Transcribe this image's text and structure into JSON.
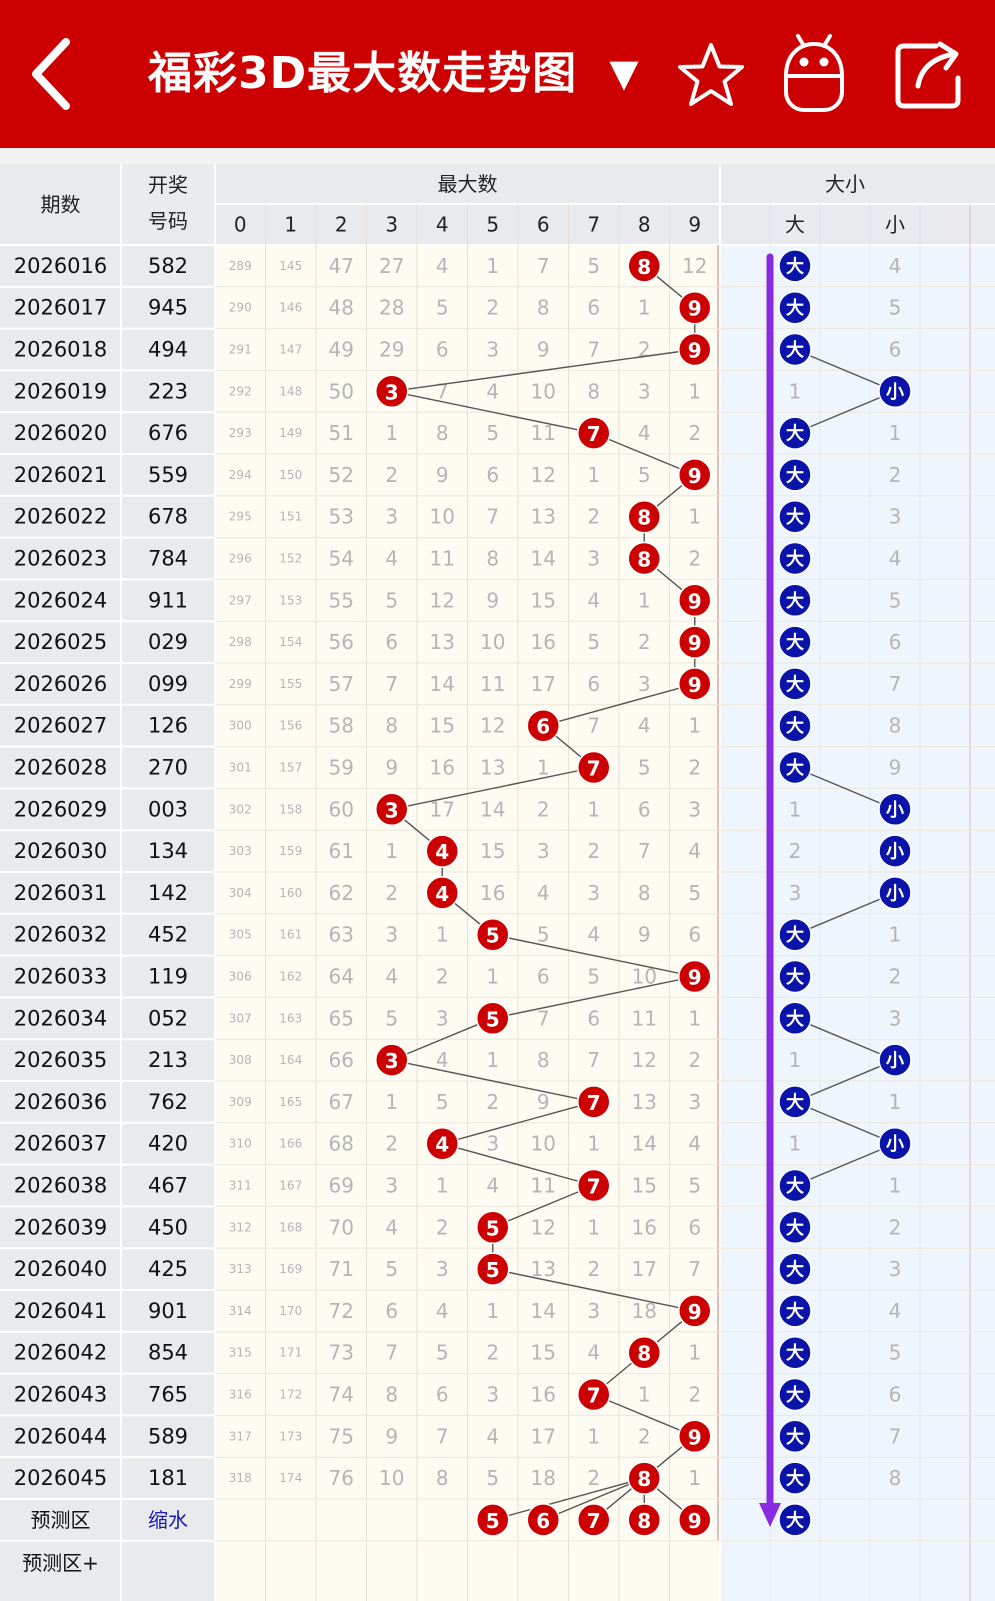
{
  "header": {
    "title": "福彩3D最大数走势图",
    "dropdown_glyph": "▼",
    "back_icon": "chevron-left-icon",
    "star_icon": "star-icon",
    "robot_icon": "robot-icon",
    "share_icon": "share-icon"
  },
  "colors": {
    "header_bg": "#cc0000",
    "red_ball": "#cc0000",
    "blue_ball": "#0a14a8",
    "purple_arrow": "#8a2be2",
    "miss_text": "#b5b5b5",
    "left_bg": "#e9eaee",
    "right_bg": "#eef5fc",
    "mid_bg": "#fdfbf2"
  },
  "table": {
    "col_headers": {
      "period": "期数",
      "code_line1": "开奖",
      "code_line2": "号码",
      "maxnum_group": "最大数",
      "size_group": "大小",
      "big": "大",
      "small": "小"
    },
    "digit_headers": [
      "0",
      "1",
      "2",
      "3",
      "4",
      "5",
      "6",
      "7",
      "8",
      "9"
    ],
    "rows": [
      {
        "period": "2026016",
        "code": "582",
        "max": 8,
        "size": "big",
        "miss": [
          "289",
          "145",
          "47",
          "27",
          "4",
          "1",
          "7",
          "5",
          "",
          "12"
        ],
        "size_miss": "4"
      },
      {
        "period": "2026017",
        "code": "945",
        "max": 9,
        "size": "big",
        "miss": [
          "290",
          "146",
          "48",
          "28",
          "5",
          "2",
          "8",
          "6",
          "1",
          ""
        ],
        "size_miss": "5"
      },
      {
        "period": "2026018",
        "code": "494",
        "max": 9,
        "size": "big",
        "miss": [
          "291",
          "147",
          "49",
          "29",
          "6",
          "3",
          "9",
          "7",
          "2",
          ""
        ],
        "size_miss": "6"
      },
      {
        "period": "2026019",
        "code": "223",
        "max": 3,
        "size": "small",
        "miss": [
          "292",
          "148",
          "50",
          "",
          "7",
          "4",
          "10",
          "8",
          "3",
          "1"
        ],
        "size_miss": "1"
      },
      {
        "period": "2026020",
        "code": "676",
        "max": 7,
        "size": "big",
        "miss": [
          "293",
          "149",
          "51",
          "1",
          "8",
          "5",
          "11",
          "",
          "4",
          "2"
        ],
        "size_miss": "1"
      },
      {
        "period": "2026021",
        "code": "559",
        "max": 9,
        "size": "big",
        "miss": [
          "294",
          "150",
          "52",
          "2",
          "9",
          "6",
          "12",
          "1",
          "5",
          ""
        ],
        "size_miss": "2"
      },
      {
        "period": "2026022",
        "code": "678",
        "max": 8,
        "size": "big",
        "miss": [
          "295",
          "151",
          "53",
          "3",
          "10",
          "7",
          "13",
          "2",
          "",
          "1"
        ],
        "size_miss": "3"
      },
      {
        "period": "2026023",
        "code": "784",
        "max": 8,
        "size": "big",
        "miss": [
          "296",
          "152",
          "54",
          "4",
          "11",
          "8",
          "14",
          "3",
          "",
          "2"
        ],
        "size_miss": "4"
      },
      {
        "period": "2026024",
        "code": "911",
        "max": 9,
        "size": "big",
        "miss": [
          "297",
          "153",
          "55",
          "5",
          "12",
          "9",
          "15",
          "4",
          "1",
          ""
        ],
        "size_miss": "5"
      },
      {
        "period": "2026025",
        "code": "029",
        "max": 9,
        "size": "big",
        "miss": [
          "298",
          "154",
          "56",
          "6",
          "13",
          "10",
          "16",
          "5",
          "2",
          ""
        ],
        "size_miss": "6"
      },
      {
        "period": "2026026",
        "code": "099",
        "max": 9,
        "size": "big",
        "miss": [
          "299",
          "155",
          "57",
          "7",
          "14",
          "11",
          "17",
          "6",
          "3",
          ""
        ],
        "size_miss": "7"
      },
      {
        "period": "2026027",
        "code": "126",
        "max": 6,
        "size": "big",
        "miss": [
          "300",
          "156",
          "58",
          "8",
          "15",
          "12",
          "",
          "7",
          "4",
          "1"
        ],
        "size_miss": "8"
      },
      {
        "period": "2026028",
        "code": "270",
        "max": 7,
        "size": "big",
        "miss": [
          "301",
          "157",
          "59",
          "9",
          "16",
          "13",
          "1",
          "",
          "5",
          "2"
        ],
        "size_miss": "9"
      },
      {
        "period": "2026029",
        "code": "003",
        "max": 3,
        "size": "small",
        "miss": [
          "302",
          "158",
          "60",
          "",
          "17",
          "14",
          "2",
          "1",
          "6",
          "3"
        ],
        "size_miss": "1"
      },
      {
        "period": "2026030",
        "code": "134",
        "max": 4,
        "size": "small",
        "miss": [
          "303",
          "159",
          "61",
          "1",
          "",
          "15",
          "3",
          "2",
          "7",
          "4"
        ],
        "size_miss": "2"
      },
      {
        "period": "2026031",
        "code": "142",
        "max": 4,
        "size": "small",
        "miss": [
          "304",
          "160",
          "62",
          "2",
          "",
          "16",
          "4",
          "3",
          "8",
          "5"
        ],
        "size_miss": "3"
      },
      {
        "period": "2026032",
        "code": "452",
        "max": 5,
        "size": "big",
        "miss": [
          "305",
          "161",
          "63",
          "3",
          "1",
          "",
          "5",
          "4",
          "9",
          "6"
        ],
        "size_miss": "1"
      },
      {
        "period": "2026033",
        "code": "119",
        "max": 9,
        "size": "big",
        "miss": [
          "306",
          "162",
          "64",
          "4",
          "2",
          "1",
          "6",
          "5",
          "10",
          ""
        ],
        "size_miss": "2"
      },
      {
        "period": "2026034",
        "code": "052",
        "max": 5,
        "size": "big",
        "miss": [
          "307",
          "163",
          "65",
          "5",
          "3",
          "",
          "7",
          "6",
          "11",
          "1"
        ],
        "size_miss": "3"
      },
      {
        "period": "2026035",
        "code": "213",
        "max": 3,
        "size": "small",
        "miss": [
          "308",
          "164",
          "66",
          "",
          "4",
          "1",
          "8",
          "7",
          "12",
          "2"
        ],
        "size_miss": "1"
      },
      {
        "period": "2026036",
        "code": "762",
        "max": 7,
        "size": "big",
        "miss": [
          "309",
          "165",
          "67",
          "1",
          "5",
          "2",
          "9",
          "",
          "13",
          "3"
        ],
        "size_miss": "1"
      },
      {
        "period": "2026037",
        "code": "420",
        "max": 4,
        "size": "small",
        "miss": [
          "310",
          "166",
          "68",
          "2",
          "",
          "3",
          "10",
          "1",
          "14",
          "4"
        ],
        "size_miss": "1"
      },
      {
        "period": "2026038",
        "code": "467",
        "max": 7,
        "size": "big",
        "miss": [
          "311",
          "167",
          "69",
          "3",
          "1",
          "4",
          "11",
          "",
          "15",
          "5"
        ],
        "size_miss": "1"
      },
      {
        "period": "2026039",
        "code": "450",
        "max": 5,
        "size": "big",
        "miss": [
          "312",
          "168",
          "70",
          "4",
          "2",
          "",
          "12",
          "1",
          "16",
          "6"
        ],
        "size_miss": "2"
      },
      {
        "period": "2026040",
        "code": "425",
        "max": 5,
        "size": "big",
        "miss": [
          "313",
          "169",
          "71",
          "5",
          "3",
          "",
          "13",
          "2",
          "17",
          "7"
        ],
        "size_miss": "3"
      },
      {
        "period": "2026041",
        "code": "901",
        "max": 9,
        "size": "big",
        "miss": [
          "314",
          "170",
          "72",
          "6",
          "4",
          "1",
          "14",
          "3",
          "18",
          ""
        ],
        "size_miss": "4"
      },
      {
        "period": "2026042",
        "code": "854",
        "max": 8,
        "size": "big",
        "miss": [
          "315",
          "171",
          "73",
          "7",
          "5",
          "2",
          "15",
          "4",
          "",
          "1"
        ],
        "size_miss": "5"
      },
      {
        "period": "2026043",
        "code": "765",
        "max": 7,
        "size": "big",
        "miss": [
          "316",
          "172",
          "74",
          "8",
          "6",
          "3",
          "16",
          "",
          "1",
          "2"
        ],
        "size_miss": "6"
      },
      {
        "period": "2026044",
        "code": "589",
        "max": 9,
        "size": "big",
        "miss": [
          "317",
          "173",
          "75",
          "9",
          "7",
          "4",
          "17",
          "1",
          "2",
          ""
        ],
        "size_miss": "7"
      },
      {
        "period": "2026045",
        "code": "181",
        "max": 8,
        "size": "big",
        "miss": [
          "318",
          "174",
          "76",
          "10",
          "8",
          "5",
          "18",
          "2",
          "",
          "1"
        ],
        "size_miss": "8"
      }
    ],
    "predict": {
      "label": "预测区",
      "code_link": "缩水",
      "balls": [
        5,
        6,
        7,
        8,
        9
      ],
      "size_ball": "大",
      "big_label": "大"
    },
    "predict_plus": {
      "label": "预测区+"
    }
  }
}
